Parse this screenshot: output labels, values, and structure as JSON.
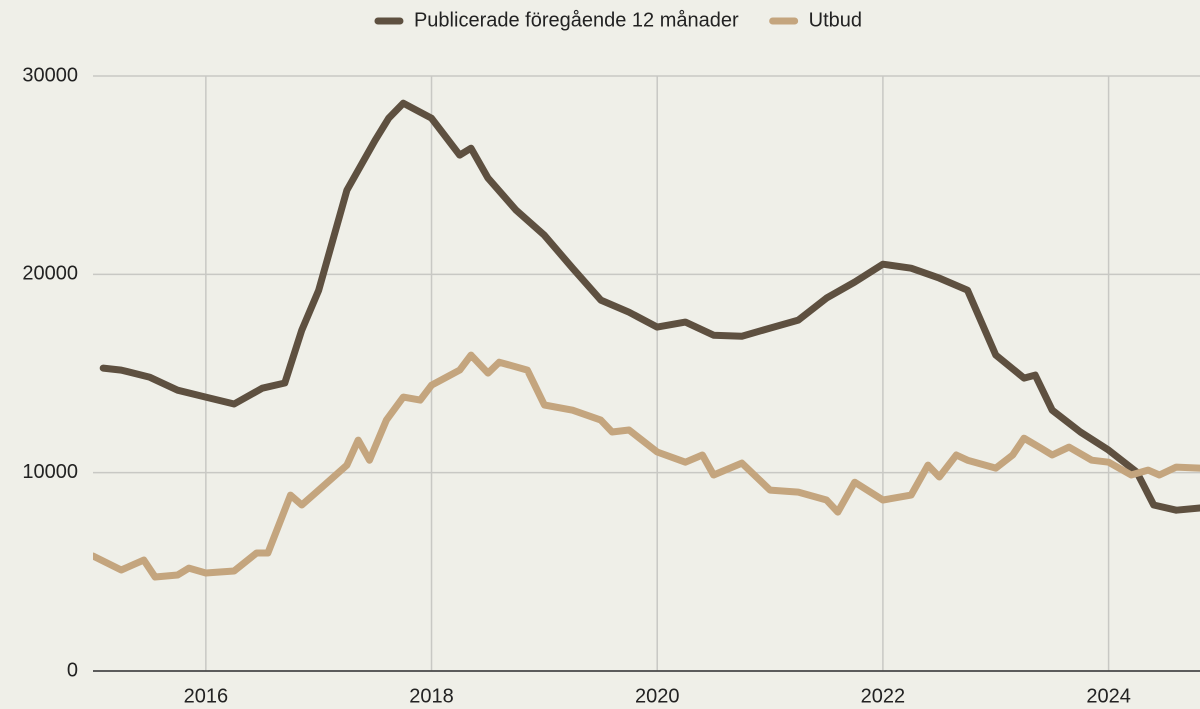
{
  "chart_data": {
    "type": "line",
    "xlim": [
      2015,
      2024.81
    ],
    "xticks": [
      2016,
      2018,
      2020,
      2022,
      2024
    ],
    "ylim": [
      0,
      30000
    ],
    "yticks": [
      0,
      10000,
      20000,
      30000
    ],
    "grid": true,
    "legend": "top",
    "series": [
      {
        "name": "Publicerade föregående 12 månader",
        "color": "#5e5040",
        "x": [
          2015.09,
          2015.25,
          2015.5,
          2015.75,
          2016.0,
          2016.25,
          2016.5,
          2016.7,
          2016.85,
          2017.0,
          2017.25,
          2017.5,
          2017.62,
          2017.75,
          2018.0,
          2018.25,
          2018.35,
          2018.5,
          2018.75,
          2019.0,
          2019.25,
          2019.5,
          2019.75,
          2020.0,
          2020.25,
          2020.5,
          2020.75,
          2021.0,
          2021.25,
          2021.5,
          2021.75,
          2022.0,
          2022.25,
          2022.5,
          2022.75,
          2023.0,
          2023.25,
          2023.35,
          2023.5,
          2023.75,
          2024.0,
          2024.25,
          2024.4,
          2024.6,
          2024.81
        ],
        "values": [
          15270,
          15170,
          14820,
          14160,
          13810,
          13460,
          14260,
          14520,
          17190,
          19200,
          24240,
          26760,
          27870,
          28630,
          27870,
          26010,
          26360,
          24850,
          23230,
          21970,
          20310,
          18700,
          18090,
          17340,
          17590,
          16930,
          16880,
          17290,
          17690,
          18800,
          19610,
          20510,
          20310,
          19810,
          19200,
          15930,
          14770,
          14920,
          13150,
          12050,
          11140,
          10030,
          8370,
          8110,
          8220
        ]
      },
      {
        "name": "Utbud",
        "color": "#c4a57e",
        "x": [
          2015.0,
          2015.25,
          2015.45,
          2015.55,
          2015.75,
          2015.85,
          2016.0,
          2016.25,
          2016.45,
          2016.55,
          2016.75,
          2016.85,
          2017.0,
          2017.25,
          2017.35,
          2017.45,
          2017.6,
          2017.75,
          2017.9,
          2018.0,
          2018.25,
          2018.35,
          2018.5,
          2018.6,
          2018.85,
          2019.0,
          2019.25,
          2019.5,
          2019.6,
          2019.75,
          2020.0,
          2020.25,
          2020.4,
          2020.5,
          2020.75,
          2021.0,
          2021.25,
          2021.5,
          2021.6,
          2021.75,
          2022.0,
          2022.25,
          2022.4,
          2022.5,
          2022.65,
          2022.75,
          2023.0,
          2023.15,
          2023.25,
          2023.4,
          2023.5,
          2023.65,
          2023.85,
          2024.0,
          2024.2,
          2024.35,
          2024.45,
          2024.6,
          2024.81
        ],
        "values": [
          5800,
          5090,
          5590,
          4740,
          4840,
          5190,
          4940,
          5040,
          5950,
          5950,
          8870,
          8370,
          9120,
          10380,
          11640,
          10630,
          12650,
          13810,
          13660,
          14410,
          15170,
          15930,
          15020,
          15570,
          15170,
          13410,
          13150,
          12650,
          12050,
          12150,
          11040,
          10530,
          10890,
          9880,
          10480,
          9120,
          9020,
          8620,
          8010,
          9520,
          8620,
          8870,
          10380,
          9780,
          10890,
          10630,
          10230,
          10890,
          11740,
          11240,
          10890,
          11290,
          10630,
          10530,
          9880,
          10130,
          9880,
          10280,
          10230
        ]
      }
    ]
  }
}
